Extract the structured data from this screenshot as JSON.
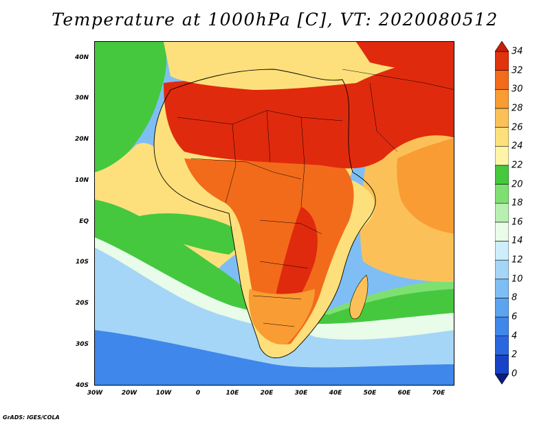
{
  "title": "Temperature at 1000hPa [C], VT: 2020080512",
  "credit": "GrADS: IGES/COLA",
  "map": {
    "lat_labels": [
      "40N",
      "30N",
      "20N",
      "10N",
      "EQ",
      "10S",
      "20S",
      "30S",
      "40S"
    ],
    "lon_labels": [
      "30W",
      "20W",
      "10W",
      "0",
      "10E",
      "20E",
      "30E",
      "40E",
      "50E",
      "60E",
      "70E"
    ],
    "extent": {
      "lon": [
        -30,
        75
      ],
      "lat": [
        -40,
        44
      ]
    }
  },
  "colorbar": {
    "levels": [
      "0",
      "2",
      "4",
      "6",
      "8",
      "10",
      "12",
      "14",
      "16",
      "18",
      "20",
      "22",
      "24",
      "26",
      "28",
      "30",
      "32",
      "34"
    ],
    "colors": [
      "#0a1d7e",
      "#1743c6",
      "#2a67df",
      "#3f87ea",
      "#5da4f0",
      "#7fbef4",
      "#a6d6f7",
      "#cfeefb",
      "#e9fbe9",
      "#b8f0b2",
      "#7fe072",
      "#45c83e",
      "#fff5a8",
      "#fde07b",
      "#fbc158",
      "#f99c33",
      "#f26b1a",
      "#e1330c",
      "#c81e09"
    ]
  },
  "field_colors": {
    "hot": "#e02a0d",
    "very_warm": "#f26b1a",
    "warm": "#f99c33",
    "mild": "#fbc158",
    "pale": "#fde07b",
    "cream": "#fff5a8",
    "green": "#45c83e",
    "light_green": "#7fe072",
    "pale_green": "#b8f0b2",
    "mint": "#e9fbe9",
    "pale_blue": "#a6d6f7",
    "blue": "#7fbef4",
    "deep_blue": "#3f87ea"
  }
}
